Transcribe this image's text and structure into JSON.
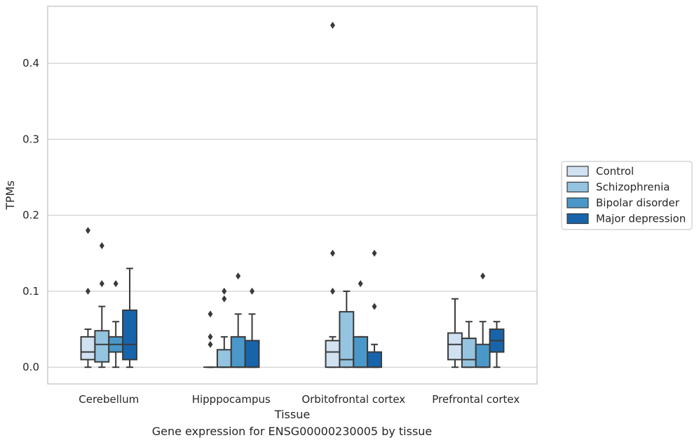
{
  "chart_data": {
    "type": "box",
    "xlabel": "Tissue",
    "ylabel": "TPMs",
    "ylim": [
      -0.022,
      0.475
    ],
    "yticks": [
      0.0,
      0.1,
      0.2,
      0.3,
      0.4
    ],
    "ytick_labels": [
      "0.0",
      "0.1",
      "0.2",
      "0.3",
      "0.4"
    ],
    "grid": "horizontal",
    "legend_position": "right",
    "categories": [
      "Cerebellum",
      "Hipppocampus",
      "Orbitofrontal cortex",
      "Prefrontal cortex"
    ],
    "series": [
      {
        "name": "Control",
        "color": "#d0e1f2",
        "boxes": [
          {
            "whislo": 0.0,
            "q1": 0.01,
            "med": 0.02,
            "q3": 0.04,
            "whishi": 0.05,
            "fliers": [
              0.1,
              0.18
            ]
          },
          {
            "whislo": 0.0,
            "q1": 0.0,
            "med": 0.0,
            "q3": 0.0,
            "whishi": 0.0,
            "fliers": [
              0.03,
              0.04,
              0.07
            ]
          },
          {
            "whislo": 0.0,
            "q1": 0.0,
            "med": 0.02,
            "q3": 0.035,
            "whishi": 0.04,
            "fliers": [
              0.1,
              0.15,
              0.45
            ]
          },
          {
            "whislo": 0.0,
            "q1": 0.01,
            "med": 0.03,
            "q3": 0.045,
            "whishi": 0.09,
            "fliers": []
          }
        ]
      },
      {
        "name": "Schizophrenia",
        "color": "#94c4df",
        "boxes": [
          {
            "whislo": 0.0,
            "q1": 0.007,
            "med": 0.03,
            "q3": 0.048,
            "whishi": 0.08,
            "fliers": [
              0.11,
              0.16
            ]
          },
          {
            "whislo": 0.0,
            "q1": 0.0,
            "med": 0.0,
            "q3": 0.023,
            "whishi": 0.04,
            "fliers": [
              0.09,
              0.1
            ]
          },
          {
            "whislo": 0.0,
            "q1": 0.0,
            "med": 0.01,
            "q3": 0.073,
            "whishi": 0.1,
            "fliers": []
          },
          {
            "whislo": 0.0,
            "q1": 0.0,
            "med": 0.01,
            "q3": 0.038,
            "whishi": 0.06,
            "fliers": []
          }
        ]
      },
      {
        "name": "Bipolar disorder",
        "color": "#4a98c9",
        "boxes": [
          {
            "whislo": 0.0,
            "q1": 0.02,
            "med": 0.03,
            "q3": 0.04,
            "whishi": 0.06,
            "fliers": [
              0.11
            ]
          },
          {
            "whislo": 0.0,
            "q1": 0.0,
            "med": 0.0,
            "q3": 0.04,
            "whishi": 0.07,
            "fliers": [
              0.12
            ]
          },
          {
            "whislo": 0.0,
            "q1": 0.0,
            "med": 0.0,
            "q3": 0.04,
            "whishi": 0.04,
            "fliers": [
              0.11
            ]
          },
          {
            "whislo": 0.0,
            "q1": 0.0,
            "med": 0.0,
            "q3": 0.03,
            "whishi": 0.06,
            "fliers": [
              0.12
            ]
          }
        ]
      },
      {
        "name": "Major depression",
        "color": "#1764ab",
        "boxes": [
          {
            "whislo": 0.0,
            "q1": 0.01,
            "med": 0.03,
            "q3": 0.075,
            "whishi": 0.13,
            "fliers": []
          },
          {
            "whislo": 0.0,
            "q1": 0.0,
            "med": 0.0,
            "q3": 0.035,
            "whishi": 0.07,
            "fliers": [
              0.1
            ]
          },
          {
            "whislo": 0.0,
            "q1": 0.0,
            "med": 0.0,
            "q3": 0.02,
            "whishi": 0.03,
            "fliers": [
              0.08,
              0.15
            ]
          },
          {
            "whislo": 0.0,
            "q1": 0.02,
            "med": 0.035,
            "q3": 0.05,
            "whishi": 0.06,
            "fliers": []
          }
        ]
      }
    ]
  },
  "caption": "Gene expression for ENSG00000230005 by tissue"
}
